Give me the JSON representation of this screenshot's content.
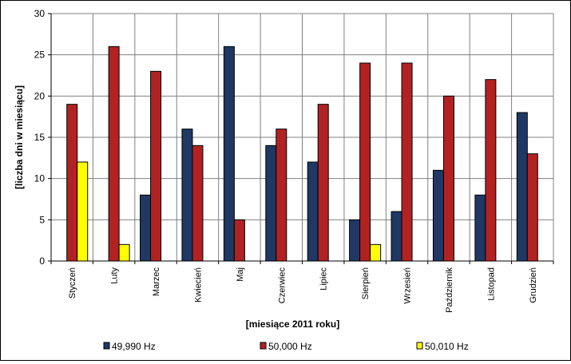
{
  "chart_data": {
    "type": "bar",
    "categories": [
      "Styczeń",
      "Luty",
      "Marzec",
      "Kwiecień",
      "Maj",
      "Czerwiec",
      "Lipiec",
      "Sierpień",
      "Wrzesień",
      "Październik",
      "Listopad",
      "Grudzień"
    ],
    "series": [
      {
        "name": "49,990 Hz",
        "color": "#1F3864",
        "values": [
          0,
          0,
          8,
          16,
          26,
          14,
          12,
          5,
          6,
          11,
          8,
          18
        ]
      },
      {
        "name": "50,000 Hz",
        "color": "#B22222",
        "values": [
          19,
          26,
          23,
          14,
          5,
          16,
          19,
          24,
          24,
          20,
          22,
          13
        ]
      },
      {
        "name": "50,010 Hz",
        "color": "#FFFF00",
        "values": [
          12,
          2,
          0,
          0,
          0,
          0,
          0,
          2,
          0,
          0,
          0,
          0
        ]
      }
    ],
    "xlabel": "[miesiące 2011 roku]",
    "ylabel": "[liczba dni w miesiącu]",
    "ylim": [
      0,
      30
    ],
    "yticks": [
      0,
      5,
      10,
      15,
      20,
      25,
      30
    ],
    "grid": true,
    "plot_background": "#FFFFFF",
    "grid_color": "#808080",
    "legend_position": "bottom"
  }
}
